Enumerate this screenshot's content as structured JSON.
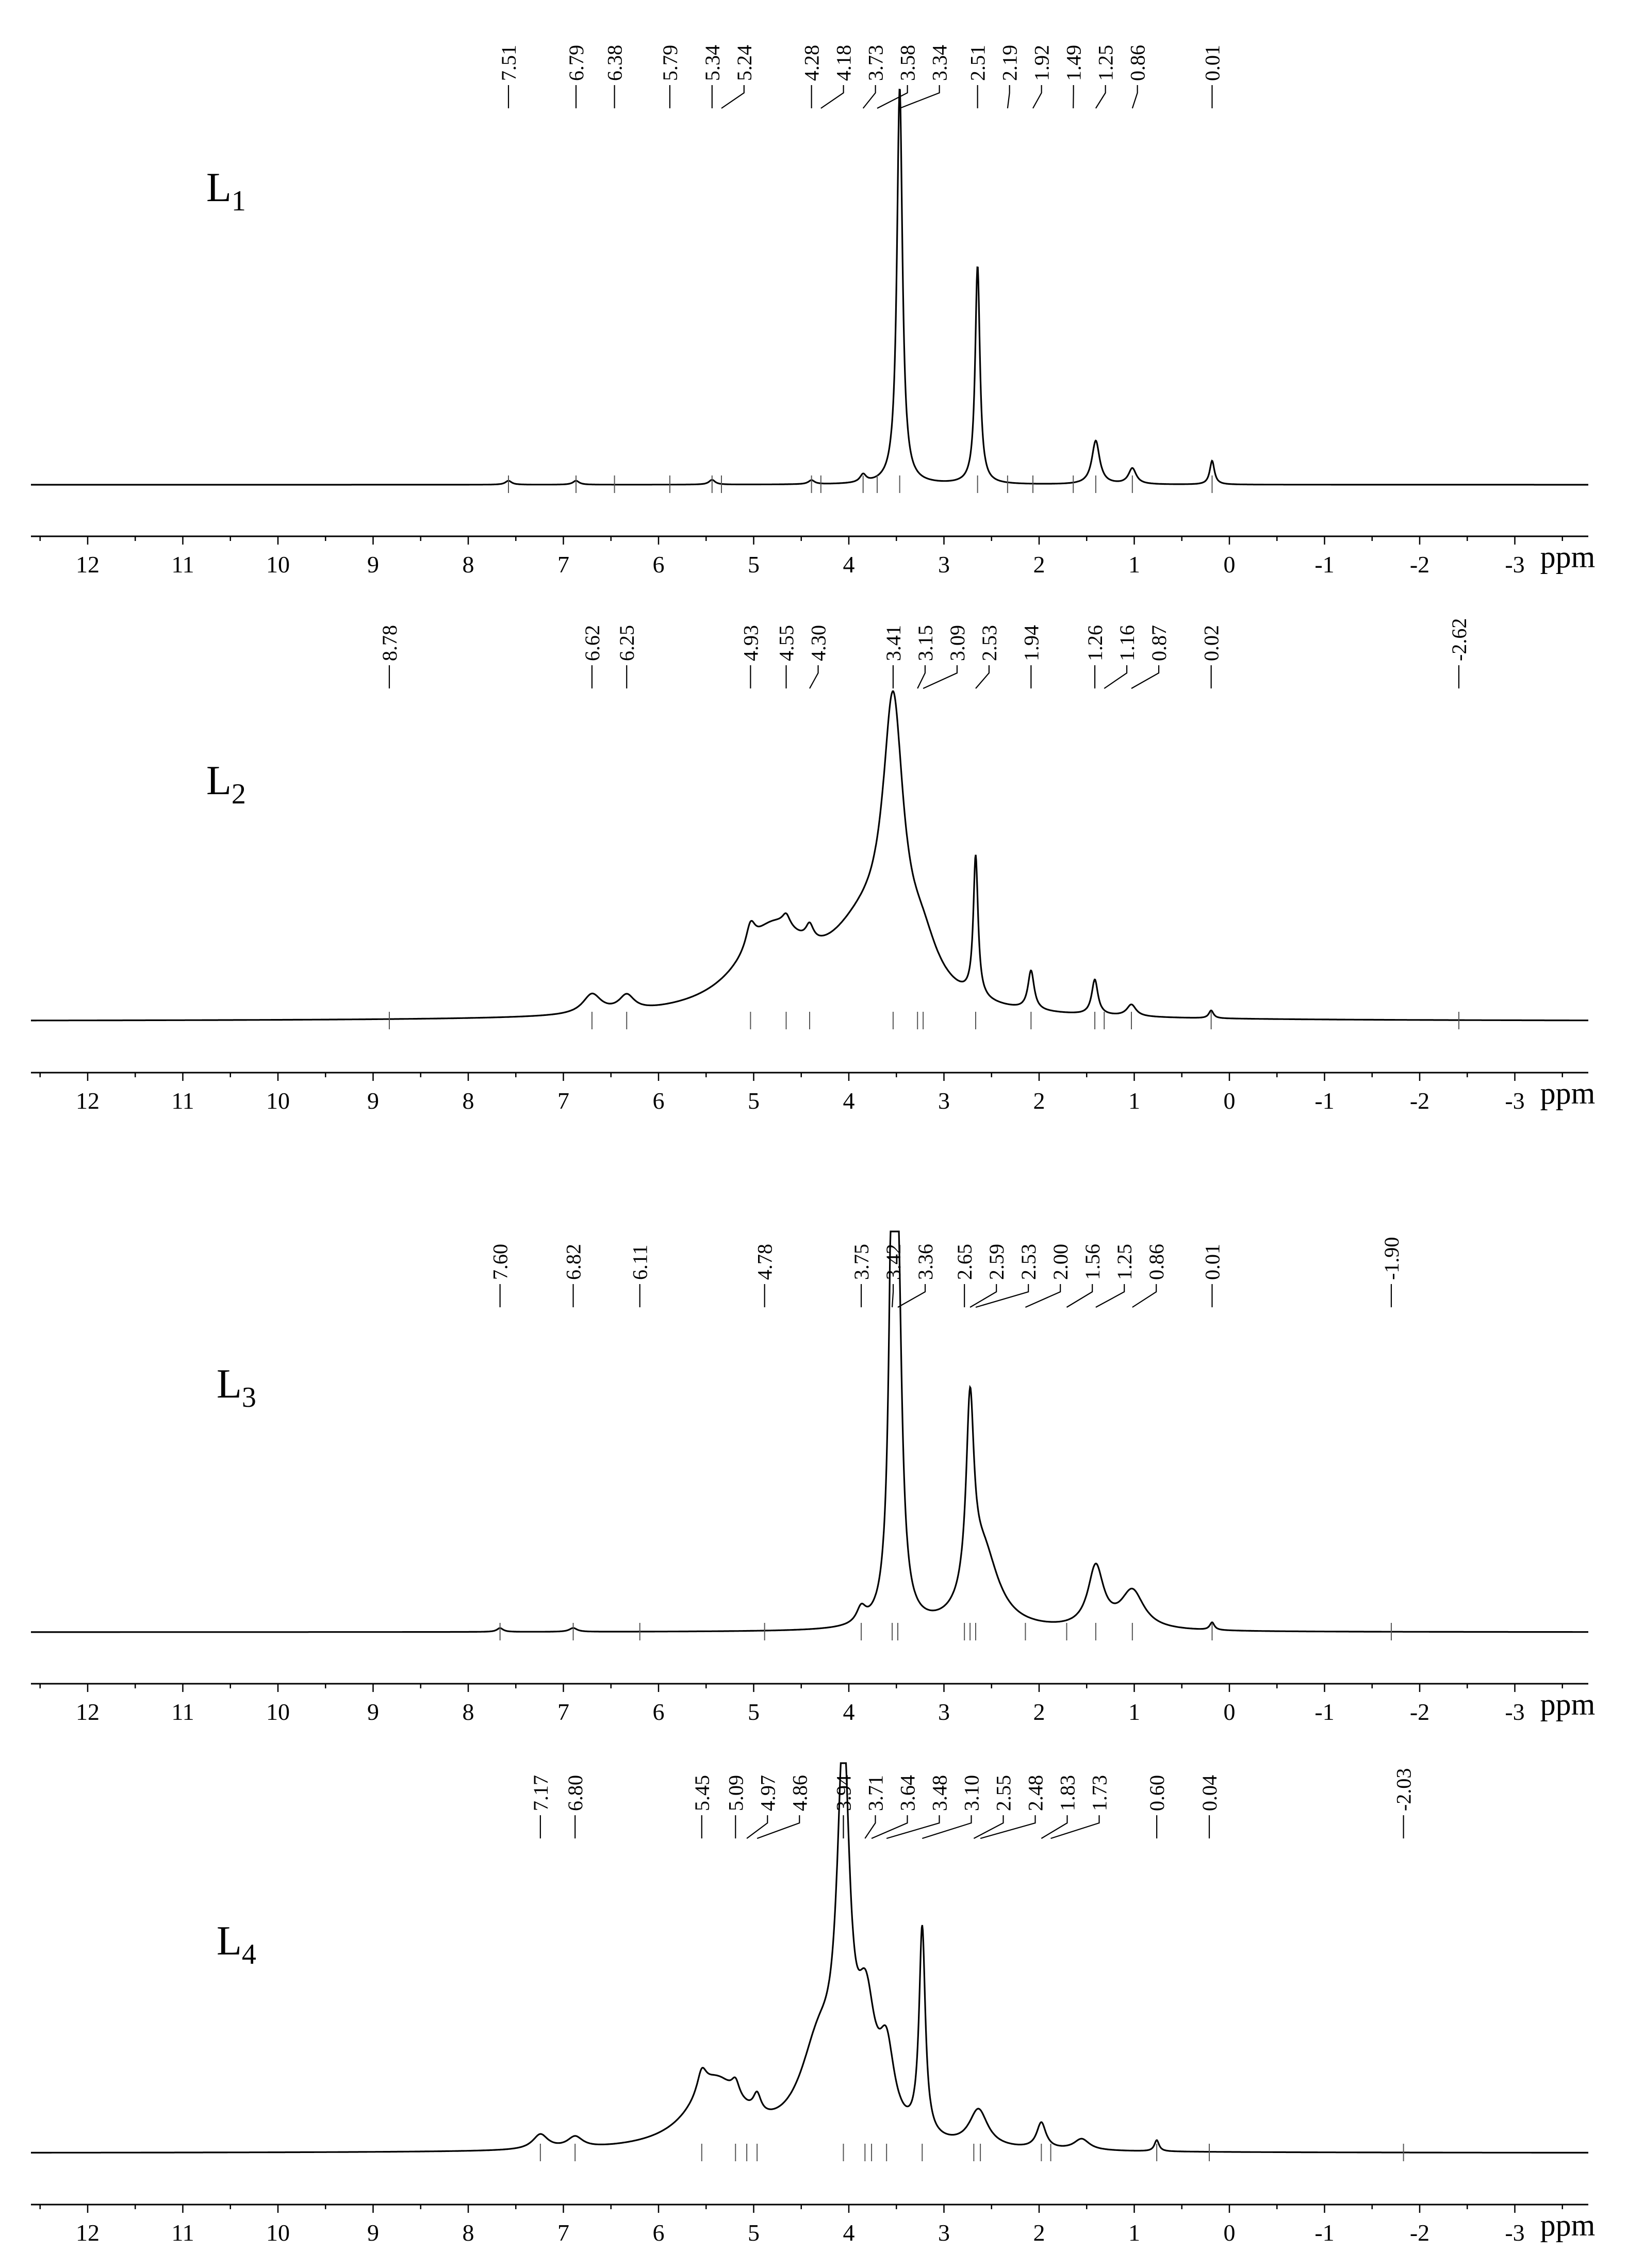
{
  "chart_data": [
    {
      "type": "line",
      "label_text": "L",
      "label_sub": "1",
      "xlabel": "ppm",
      "xlim": [
        12.6,
        -4.0
      ],
      "x_ticks": [
        "12",
        "11",
        "10",
        "9",
        "8",
        "7",
        "6",
        "5",
        "4",
        "3",
        "2",
        "1",
        "0",
        "-1",
        "-2",
        "-3"
      ],
      "shift_labels": [
        "7.51",
        "6.79",
        "6.38",
        "5.79",
        "5.34",
        "5.24",
        "4.28",
        "4.18",
        "3.73",
        "3.58",
        "3.34",
        "2.51",
        "2.19",
        "1.92",
        "1.49",
        "1.25",
        "0.86",
        "0.01"
      ],
      "shift_values": [
        7.51,
        6.79,
        6.38,
        5.79,
        5.34,
        5.24,
        4.28,
        4.18,
        3.73,
        3.58,
        3.34,
        2.51,
        2.19,
        1.92,
        1.49,
        1.25,
        0.86,
        0.01
      ],
      "peaks": [
        {
          "ppm": 3.34,
          "height": 1.0,
          "width": 0.035
        },
        {
          "ppm": 2.51,
          "height": 0.55,
          "width": 0.03
        },
        {
          "ppm": 1.25,
          "height": 0.11,
          "width": 0.05
        },
        {
          "ppm": 0.86,
          "height": 0.04,
          "width": 0.05
        },
        {
          "ppm": 0.01,
          "height": 0.06,
          "width": 0.03
        },
        {
          "ppm": 3.73,
          "height": 0.02,
          "width": 0.04
        },
        {
          "ppm": 7.51,
          "height": 0.01,
          "width": 0.04
        },
        {
          "ppm": 6.79,
          "height": 0.01,
          "width": 0.04
        },
        {
          "ppm": 5.34,
          "height": 0.012,
          "width": 0.04
        },
        {
          "ppm": 4.28,
          "height": 0.01,
          "width": 0.04
        }
      ]
    },
    {
      "type": "line",
      "label_text": "L",
      "label_sub": "2",
      "xlabel": "ppm",
      "xlim": [
        12.6,
        -4.0
      ],
      "x_ticks": [
        "12",
        "11",
        "10",
        "9",
        "8",
        "7",
        "6",
        "5",
        "4",
        "3",
        "2",
        "1",
        "0",
        "-1",
        "-2",
        "-3"
      ],
      "shift_labels": [
        "8.78",
        "6.62",
        "6.25",
        "4.93",
        "4.55",
        "4.30",
        "3.41",
        "3.15",
        "3.09",
        "2.53",
        "1.94",
        "1.26",
        "1.16",
        "0.87",
        "0.02",
        "-2.62"
      ],
      "shift_values": [
        8.78,
        6.62,
        6.25,
        4.93,
        4.55,
        4.3,
        3.41,
        3.15,
        3.09,
        2.53,
        1.94,
        1.26,
        1.16,
        0.87,
        0.02,
        -2.62
      ],
      "peaks": [
        {
          "ppm": 3.41,
          "height": 0.64,
          "width": 0.13
        },
        {
          "ppm": 3.7,
          "height": 0.2,
          "width": 0.5
        },
        {
          "ppm": 4.7,
          "height": 0.2,
          "width": 0.45
        },
        {
          "ppm": 4.93,
          "height": 0.06,
          "width": 0.06
        },
        {
          "ppm": 3.1,
          "height": 0.1,
          "width": 0.2
        },
        {
          "ppm": 2.53,
          "height": 0.36,
          "width": 0.03
        },
        {
          "ppm": 1.94,
          "height": 0.1,
          "width": 0.04
        },
        {
          "ppm": 1.26,
          "height": 0.09,
          "width": 0.04
        },
        {
          "ppm": 0.87,
          "height": 0.03,
          "width": 0.06
        },
        {
          "ppm": 6.62,
          "height": 0.05,
          "width": 0.12
        },
        {
          "ppm": 6.25,
          "height": 0.04,
          "width": 0.1
        },
        {
          "ppm": 4.55,
          "height": 0.03,
          "width": 0.05
        },
        {
          "ppm": 4.3,
          "height": 0.04,
          "width": 0.05
        },
        {
          "ppm": 0.02,
          "height": 0.02,
          "width": 0.03
        }
      ]
    },
    {
      "type": "line",
      "label_text": "L",
      "label_sub": "3",
      "xlabel": "ppm",
      "xlim": [
        12.6,
        -4.0
      ],
      "x_ticks": [
        "12",
        "11",
        "10",
        "9",
        "8",
        "7",
        "6",
        "5",
        "4",
        "3",
        "2",
        "1",
        "0",
        "-1",
        "-2",
        "-3"
      ],
      "shift_labels": [
        "7.60",
        "6.82",
        "6.11",
        "4.78",
        "3.75",
        "3.42",
        "3.36",
        "2.65",
        "2.59",
        "2.53",
        "2.00",
        "1.56",
        "1.25",
        "0.86",
        "0.01",
        "-1.90"
      ],
      "shift_values": [
        7.6,
        6.82,
        6.11,
        4.78,
        3.75,
        3.42,
        3.36,
        2.65,
        2.59,
        2.53,
        2.0,
        1.56,
        1.25,
        0.86,
        0.01,
        -1.9
      ],
      "peaks": [
        {
          "ppm": 3.42,
          "height": 1.0,
          "width": 0.04
        },
        {
          "ppm": 3.36,
          "height": 0.85,
          "width": 0.05
        },
        {
          "ppm": 2.59,
          "height": 0.5,
          "width": 0.05
        },
        {
          "ppm": 2.45,
          "height": 0.2,
          "width": 0.2
        },
        {
          "ppm": 1.25,
          "height": 0.16,
          "width": 0.1
        },
        {
          "ppm": 0.86,
          "height": 0.1,
          "width": 0.15
        },
        {
          "ppm": 3.75,
          "height": 0.04,
          "width": 0.06
        },
        {
          "ppm": 7.6,
          "height": 0.01,
          "width": 0.04
        },
        {
          "ppm": 6.82,
          "height": 0.01,
          "width": 0.05
        },
        {
          "ppm": 0.01,
          "height": 0.02,
          "width": 0.03
        }
      ]
    },
    {
      "type": "line",
      "label_text": "L",
      "label_sub": "4",
      "xlabel": "ppm",
      "xlim": [
        12.6,
        -4.0
      ],
      "x_ticks": [
        "12",
        "11",
        "10",
        "9",
        "8",
        "7",
        "6",
        "5",
        "4",
        "3",
        "2",
        "1",
        "0",
        "-1",
        "-2",
        "-3"
      ],
      "shift_labels": [
        "7.17",
        "6.80",
        "5.45",
        "5.09",
        "4.97",
        "4.86",
        "3.94",
        "3.71",
        "3.64",
        "3.48",
        "3.10",
        "2.55",
        "2.48",
        "1.83",
        "1.73",
        "0.60",
        "0.04",
        "-2.03"
      ],
      "shift_values": [
        7.17,
        6.8,
        5.45,
        5.09,
        4.97,
        4.86,
        3.94,
        3.71,
        3.64,
        3.48,
        3.1,
        2.55,
        2.48,
        1.83,
        1.73,
        0.6,
        0.04,
        -2.03
      ],
      "peaks": [
        {
          "ppm": 3.94,
          "height": 0.95,
          "width": 0.08
        },
        {
          "ppm": 4.2,
          "height": 0.25,
          "width": 0.25
        },
        {
          "ppm": 5.3,
          "height": 0.18,
          "width": 0.35
        },
        {
          "ppm": 5.45,
          "height": 0.06,
          "width": 0.06
        },
        {
          "ppm": 3.7,
          "height": 0.3,
          "width": 0.12
        },
        {
          "ppm": 3.48,
          "height": 0.2,
          "width": 0.1
        },
        {
          "ppm": 3.1,
          "height": 0.56,
          "width": 0.04
        },
        {
          "ppm": 5.09,
          "height": 0.04,
          "width": 0.05
        },
        {
          "ppm": 4.86,
          "height": 0.05,
          "width": 0.05
        },
        {
          "ppm": 2.5,
          "height": 0.1,
          "width": 0.12
        },
        {
          "ppm": 1.83,
          "height": 0.07,
          "width": 0.06
        },
        {
          "ppm": 1.4,
          "height": 0.03,
          "width": 0.1
        },
        {
          "ppm": 7.17,
          "height": 0.04,
          "width": 0.1
        },
        {
          "ppm": 6.8,
          "height": 0.03,
          "width": 0.1
        },
        {
          "ppm": 0.6,
          "height": 0.03,
          "width": 0.03
        }
      ]
    }
  ]
}
